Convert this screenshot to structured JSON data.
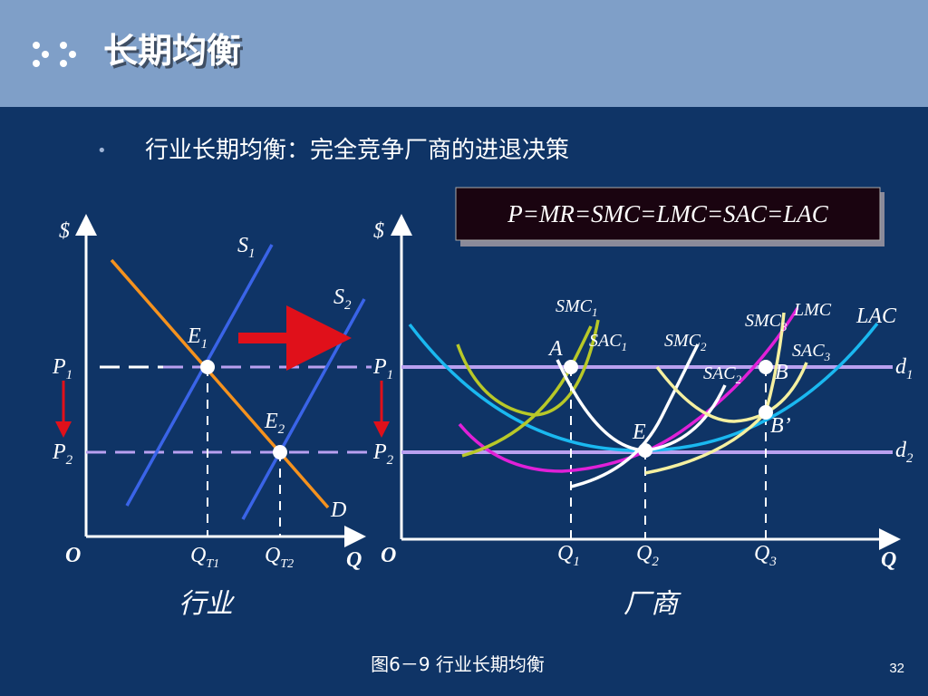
{
  "header": {
    "title": "长期均衡"
  },
  "bullet": "行业长期均衡：完全竞争厂商的进退决策",
  "formula": "P=MR=SMC=LMC=SAC=LAC",
  "industry": {
    "caption": "行业",
    "y_axis": "$",
    "x_axis": "Q",
    "origin": "O",
    "labels": {
      "s1": [
        "S",
        "1"
      ],
      "s2": [
        "S",
        "2"
      ],
      "e1": [
        "E",
        "1"
      ],
      "e2": [
        "E",
        "2"
      ],
      "d": "D",
      "p1": [
        "P",
        "1"
      ],
      "p2": [
        "P",
        "2"
      ],
      "qt1": [
        "Q",
        "T1"
      ],
      "qt2": [
        "Q",
        "T2"
      ]
    }
  },
  "firm": {
    "caption": "厂商",
    "y_axis": "$",
    "x_axis": "Q",
    "origin": "O",
    "labels": {
      "p1": [
        "P",
        "1"
      ],
      "p2": [
        "P",
        "2"
      ],
      "q1": [
        "Q",
        "1"
      ],
      "q2": [
        "Q",
        "2"
      ],
      "q3": [
        "Q",
        "3"
      ],
      "smc1": [
        "SMC",
        "1"
      ],
      "sac1": [
        "SAC",
        "1"
      ],
      "smc2": [
        "SMC",
        "2"
      ],
      "sac2": [
        "SAC",
        "2"
      ],
      "smc3": [
        "SMC",
        "3"
      ],
      "sac3": [
        "SAC",
        "3"
      ],
      "lmc": "LMC",
      "lac": "LAC",
      "a": "A",
      "e": "E",
      "b": "B",
      "b_prime": "B’",
      "d1": [
        "d",
        "1"
      ],
      "d2": [
        "d",
        "2"
      ]
    }
  },
  "figure_caption": "图6－9  行业长期均衡",
  "page_number": "32"
}
